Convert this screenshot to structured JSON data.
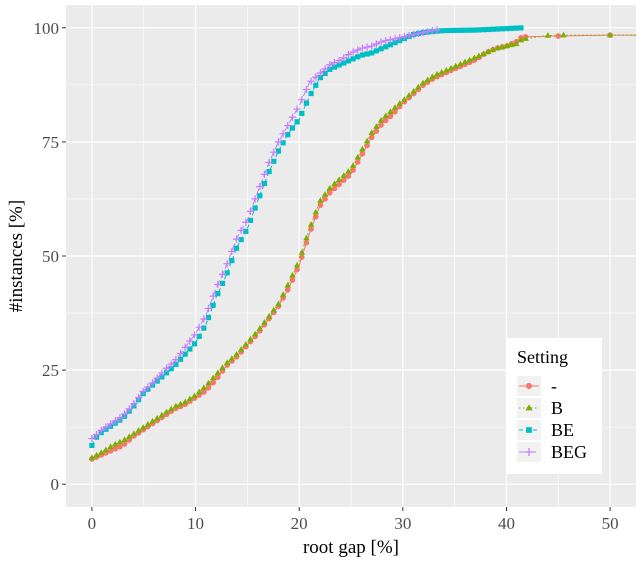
{
  "chart_data": {
    "type": "line",
    "xlabel": "root gap [%]",
    "ylabel": "#instances [%]",
    "xlim": [
      -2.5,
      52.5
    ],
    "ylim": [
      -5,
      105
    ],
    "x_ticks": [
      0,
      10,
      20,
      30,
      40,
      50
    ],
    "y_ticks": [
      0,
      25,
      50,
      75,
      100
    ],
    "x_tick_labels": [
      "0",
      "10",
      "20",
      "30",
      "40",
      "50"
    ],
    "y_tick_labels": [
      "0",
      "25",
      "50",
      "75",
      "100"
    ],
    "grid": true,
    "legend": {
      "title": "Setting",
      "position": "bottom-right",
      "entries": [
        "-",
        "B",
        "BE",
        "BEG"
      ]
    },
    "series": [
      {
        "name": "-",
        "color": "#F8766D",
        "marker": "circle",
        "dash": "solid",
        "points": [
          [
            0,
            5.5
          ],
          [
            1,
            6.5
          ],
          [
            2,
            7.5
          ],
          [
            3,
            8.5
          ],
          [
            4,
            10.5
          ],
          [
            5,
            12
          ],
          [
            6,
            13.5
          ],
          [
            7,
            15
          ],
          [
            8,
            16.5
          ],
          [
            9,
            17.5
          ],
          [
            10,
            19
          ],
          [
            11,
            20.5
          ],
          [
            12,
            23
          ],
          [
            13,
            26
          ],
          [
            14,
            28
          ],
          [
            15,
            30.5
          ],
          [
            16,
            33
          ],
          [
            17,
            36
          ],
          [
            18,
            39
          ],
          [
            19,
            43
          ],
          [
            20,
            48
          ],
          [
            21,
            55
          ],
          [
            22,
            61
          ],
          [
            23,
            64
          ],
          [
            24,
            66
          ],
          [
            25,
            68
          ],
          [
            26,
            72
          ],
          [
            27,
            76
          ],
          [
            28,
            79
          ],
          [
            29,
            81
          ],
          [
            30,
            83.5
          ],
          [
            31,
            85.5
          ],
          [
            32,
            87.5
          ],
          [
            33,
            89
          ],
          [
            34,
            90
          ],
          [
            35,
            91
          ],
          [
            36,
            92
          ],
          [
            37,
            93
          ],
          [
            38,
            94.5
          ],
          [
            39,
            95.5
          ],
          [
            40,
            96
          ],
          [
            41,
            97
          ],
          [
            41.5,
            98
          ],
          [
            45,
            98.2
          ],
          [
            50,
            98.4
          ],
          [
            52.5,
            98.4
          ]
        ]
      },
      {
        "name": "B",
        "color": "#7CAE00",
        "marker": "triangle",
        "dash": "dotted",
        "points": [
          [
            0,
            5.8
          ],
          [
            1,
            7
          ],
          [
            2,
            8.5
          ],
          [
            3,
            9.5
          ],
          [
            4,
            11
          ],
          [
            5,
            12.5
          ],
          [
            6,
            14
          ],
          [
            7,
            15.5
          ],
          [
            8,
            17
          ],
          [
            9,
            18
          ],
          [
            10,
            19.5
          ],
          [
            11,
            21.5
          ],
          [
            12,
            24
          ],
          [
            13,
            26.5
          ],
          [
            14,
            28.5
          ],
          [
            15,
            31
          ],
          [
            16,
            33.5
          ],
          [
            17,
            36.5
          ],
          [
            18,
            39.5
          ],
          [
            19,
            44
          ],
          [
            20,
            49
          ],
          [
            21,
            56
          ],
          [
            22,
            62
          ],
          [
            23,
            65
          ],
          [
            24,
            67
          ],
          [
            25,
            69
          ],
          [
            26,
            73
          ],
          [
            27,
            77
          ],
          [
            28,
            80
          ],
          [
            29,
            82
          ],
          [
            30,
            84
          ],
          [
            31,
            86
          ],
          [
            32,
            88
          ],
          [
            33,
            89.5
          ],
          [
            34,
            90.5
          ],
          [
            35,
            91.5
          ],
          [
            36,
            92.5
          ],
          [
            37,
            93.5
          ],
          [
            38,
            94.5
          ],
          [
            39,
            95.5
          ],
          [
            40,
            96
          ],
          [
            41,
            96.5
          ],
          [
            41.5,
            97.5
          ],
          [
            44,
            98.3
          ],
          [
            45.5,
            98.4
          ],
          [
            50,
            98.4
          ],
          [
            52.5,
            98.4
          ]
        ]
      },
      {
        "name": "BE",
        "color": "#00BFC4",
        "marker": "square",
        "dash": "dashed",
        "points": [
          [
            0,
            8.5
          ],
          [
            0.5,
            10.5
          ],
          [
            1,
            11.5
          ],
          [
            2,
            13
          ],
          [
            3,
            14.5
          ],
          [
            4,
            17
          ],
          [
            5,
            20
          ],
          [
            6,
            22
          ],
          [
            7,
            24
          ],
          [
            8,
            26
          ],
          [
            9,
            28.5
          ],
          [
            10,
            31
          ],
          [
            11,
            35
          ],
          [
            12,
            41
          ],
          [
            13,
            46
          ],
          [
            14,
            52
          ],
          [
            15,
            56
          ],
          [
            16,
            62
          ],
          [
            17,
            68
          ],
          [
            18,
            73
          ],
          [
            19,
            77
          ],
          [
            20,
            80
          ],
          [
            21,
            85
          ],
          [
            22,
            89
          ],
          [
            23,
            91
          ],
          [
            24,
            92
          ],
          [
            25,
            93
          ],
          [
            26,
            94
          ],
          [
            27,
            94.5
          ],
          [
            28,
            95.5
          ],
          [
            29,
            96.5
          ],
          [
            30,
            97.5
          ],
          [
            31,
            98.5
          ],
          [
            32,
            99
          ],
          [
            33,
            99.2
          ],
          [
            34,
            99.4
          ],
          [
            37,
            99.5
          ],
          [
            41.5,
            100
          ]
        ]
      },
      {
        "name": "BEG",
        "color": "#C77CFF",
        "marker": "plus",
        "dash": "longdash",
        "points": [
          [
            0,
            10
          ],
          [
            0.5,
            11
          ],
          [
            1,
            12
          ],
          [
            2,
            13.5
          ],
          [
            3,
            15
          ],
          [
            4,
            17.5
          ],
          [
            5,
            20.5
          ],
          [
            6,
            22.5
          ],
          [
            7,
            25
          ],
          [
            8,
            27
          ],
          [
            9,
            30
          ],
          [
            10,
            33
          ],
          [
            11,
            37
          ],
          [
            12,
            43
          ],
          [
            13,
            48
          ],
          [
            14,
            54
          ],
          [
            15,
            58
          ],
          [
            16,
            64
          ],
          [
            17,
            70
          ],
          [
            18,
            75
          ],
          [
            19,
            79
          ],
          [
            20,
            83
          ],
          [
            21,
            88
          ],
          [
            22,
            90
          ],
          [
            23,
            92
          ],
          [
            24,
            93
          ],
          [
            25,
            94.5
          ],
          [
            26,
            95.5
          ],
          [
            27,
            96
          ],
          [
            28,
            97
          ],
          [
            29,
            97.5
          ],
          [
            30,
            98
          ],
          [
            31,
            98.5
          ],
          [
            32,
            99
          ],
          [
            33,
            99.5
          ],
          [
            33.5,
            99.6
          ]
        ]
      }
    ]
  }
}
